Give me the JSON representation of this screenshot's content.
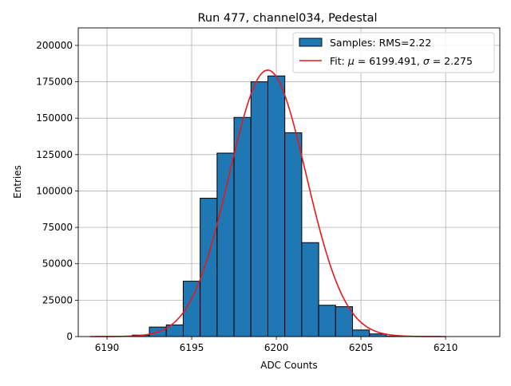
{
  "chart_data": {
    "type": "bar",
    "title": "Run 477, channel034, Pedestal",
    "xlabel": "ADC Counts",
    "ylabel": "Entries",
    "xlim": [
      6188.3,
      6213.2
    ],
    "ylim": [
      0,
      212000
    ],
    "grid": true,
    "legend_position": "upper-right",
    "xticks": [
      6190,
      6195,
      6200,
      6205,
      6210
    ],
    "yticks": [
      0,
      25000,
      50000,
      75000,
      100000,
      125000,
      150000,
      175000,
      200000
    ],
    "bar_color": "#1f77b4",
    "fit_color": "#e41a1c",
    "bin_width": 1,
    "bins": [
      {
        "x": 6192,
        "value": 1000
      },
      {
        "x": 6193,
        "value": 6500
      },
      {
        "x": 6194,
        "value": 8000
      },
      {
        "x": 6195,
        "value": 38000
      },
      {
        "x": 6196,
        "value": 95000
      },
      {
        "x": 6197,
        "value": 126000
      },
      {
        "x": 6198,
        "value": 150500
      },
      {
        "x": 6199,
        "value": 175000
      },
      {
        "x": 6200,
        "value": 179000
      },
      {
        "x": 6201,
        "value": 140000
      },
      {
        "x": 6202,
        "value": 64500
      },
      {
        "x": 6203,
        "value": 21500
      },
      {
        "x": 6204,
        "value": 20500
      },
      {
        "x": 6205,
        "value": 4500
      },
      {
        "x": 6206,
        "value": 1800
      },
      {
        "x": 6207,
        "value": 300
      }
    ],
    "fit": {
      "mu": 6199.491,
      "sigma": 2.275,
      "peak": 183000,
      "x_range": [
        6189,
        6210
      ]
    },
    "legend": {
      "samples_label": "Samples: RMS=2.22",
      "fit_prefix": "Fit: ",
      "fit_mu_symbol": "μ",
      "fit_mid": " = 6199.491, ",
      "fit_sigma_symbol": "σ",
      "fit_suffix": " = 2.275"
    }
  }
}
